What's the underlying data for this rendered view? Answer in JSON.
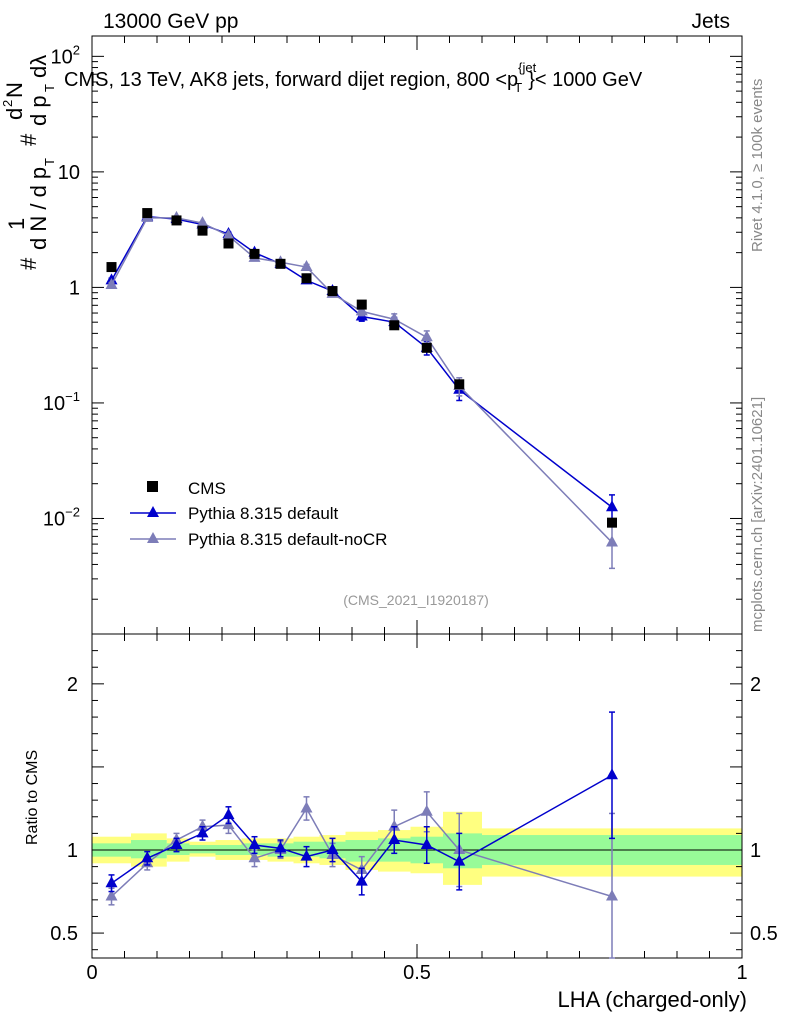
{
  "header": {
    "energy_label": "13000 GeV pp",
    "category_label": "Jets",
    "plot_title_main": "CMS, 13 TeV, AK8 jets, forward dijet region, 800 <p",
    "plot_title_sup": "{jet",
    "plot_title_sub": "T",
    "plot_title_end": "}< 1000 GeV",
    "rivet_label": "Rivet 4.1.0, ≥ 100k events",
    "mcplots_label": "mcplots.cern.ch [arXiv:2401.10621]",
    "analysis_id": "(CMS_2021_I1920187)"
  },
  "colors": {
    "data": "#000000",
    "default": "#0000cc",
    "noCR": "#7d7db8",
    "band_inner": "#98fb98",
    "band_outer": "#ffff80"
  },
  "chart_data": [
    {
      "type": "line",
      "id": "main",
      "yscale": "log",
      "xlim": [
        0,
        1
      ],
      "ylim": [
        0.001,
        150
      ],
      "ylabel": "# 1 / d N / d p_T # d^2N / d p_T dλ",
      "yticks": [
        {
          "value": 0.01,
          "base": "10",
          "exp": "−2"
        },
        {
          "value": 0.1,
          "base": "10",
          "exp": "−1"
        },
        {
          "value": 1,
          "base": "1",
          "exp": ""
        },
        {
          "value": 10,
          "base": "10",
          "exp": ""
        },
        {
          "value": 100,
          "base": "10",
          "exp": "2"
        }
      ],
      "legend": [
        {
          "label": "CMS",
          "series": "data"
        },
        {
          "label": "Pythia 8.315 default",
          "series": "default"
        },
        {
          "label": "Pythia 8.315 default-noCR",
          "series": "noCR"
        }
      ],
      "x": [
        0.03,
        0.085,
        0.13,
        0.17,
        0.21,
        0.25,
        0.29,
        0.33,
        0.37,
        0.415,
        0.465,
        0.515,
        0.565,
        0.8
      ],
      "series": [
        {
          "name": "CMS",
          "key": "data",
          "marker": "square",
          "values": [
            1.5,
            4.4,
            3.8,
            3.1,
            2.4,
            1.95,
            1.6,
            1.2,
            0.93,
            0.71,
            0.47,
            0.3,
            0.145,
            0.0092
          ]
        },
        {
          "name": "Pythia 8.315 default",
          "key": "default",
          "marker": "triangle",
          "values": [
            1.15,
            4.1,
            3.9,
            3.5,
            2.9,
            2.0,
            1.6,
            1.15,
            0.93,
            0.56,
            0.5,
            0.3,
            0.13,
            0.0125
          ],
          "errors": [
            0.05,
            0.12,
            0.12,
            0.1,
            0.1,
            0.07,
            0.06,
            0.06,
            0.05,
            0.05,
            0.05,
            0.04,
            0.025,
            0.0035
          ]
        },
        {
          "name": "Pythia 8.315 default-noCR",
          "key": "noCR",
          "marker": "triangle",
          "values": [
            1.05,
            4.0,
            4.0,
            3.6,
            2.8,
            1.8,
            1.65,
            1.5,
            0.88,
            0.62,
            0.53,
            0.37,
            0.14,
            0.0062
          ],
          "errors": [
            0.05,
            0.12,
            0.12,
            0.1,
            0.1,
            0.07,
            0.07,
            0.08,
            0.05,
            0.05,
            0.06,
            0.05,
            0.025,
            0.0025
          ]
        }
      ]
    },
    {
      "type": "line",
      "id": "ratio",
      "yscale": "linear",
      "xlim": [
        0,
        1
      ],
      "ylim": [
        0.35,
        2.3
      ],
      "xlabel": "LHA (charged-only)",
      "ylabel": "Ratio to CMS",
      "xticks": [
        {
          "value": 0,
          "label": "0"
        },
        {
          "value": 0.5,
          "label": "0.5"
        },
        {
          "value": 1,
          "label": "1"
        }
      ],
      "yticks": [
        {
          "value": 0.5,
          "label": "0.5"
        },
        {
          "value": 1,
          "label": "1"
        },
        {
          "value": 2,
          "label": "2"
        }
      ],
      "bands": [
        {
          "x0": 0.0,
          "x1": 0.06,
          "inner": [
            0.96,
            1.04
          ],
          "outer": [
            0.92,
            1.08
          ]
        },
        {
          "x0": 0.06,
          "x1": 0.115,
          "inner": [
            0.95,
            1.06
          ],
          "outer": [
            0.9,
            1.1
          ]
        },
        {
          "x0": 0.115,
          "x1": 0.15,
          "inner": [
            0.97,
            1.04
          ],
          "outer": [
            0.93,
            1.07
          ]
        },
        {
          "x0": 0.15,
          "x1": 0.19,
          "inner": [
            0.98,
            1.03
          ],
          "outer": [
            0.96,
            1.05
          ]
        },
        {
          "x0": 0.19,
          "x1": 0.23,
          "inner": [
            0.97,
            1.03
          ],
          "outer": [
            0.94,
            1.06
          ]
        },
        {
          "x0": 0.23,
          "x1": 0.27,
          "inner": [
            0.97,
            1.04
          ],
          "outer": [
            0.94,
            1.07
          ]
        },
        {
          "x0": 0.27,
          "x1": 0.31,
          "inner": [
            0.96,
            1.04
          ],
          "outer": [
            0.93,
            1.07
          ]
        },
        {
          "x0": 0.31,
          "x1": 0.35,
          "inner": [
            0.96,
            1.05
          ],
          "outer": [
            0.92,
            1.08
          ]
        },
        {
          "x0": 0.35,
          "x1": 0.39,
          "inner": [
            0.95,
            1.05
          ],
          "outer": [
            0.91,
            1.09
          ]
        },
        {
          "x0": 0.39,
          "x1": 0.44,
          "inner": [
            0.93,
            1.06
          ],
          "outer": [
            0.88,
            1.11
          ]
        },
        {
          "x0": 0.44,
          "x1": 0.49,
          "inner": [
            0.93,
            1.07
          ],
          "outer": [
            0.87,
            1.12
          ]
        },
        {
          "x0": 0.49,
          "x1": 0.54,
          "inner": [
            0.92,
            1.08
          ],
          "outer": [
            0.86,
            1.14
          ]
        },
        {
          "x0": 0.54,
          "x1": 0.6,
          "inner": [
            0.89,
            1.1
          ],
          "outer": [
            0.79,
            1.23
          ]
        },
        {
          "x0": 0.6,
          "x1": 1.0,
          "inner": [
            0.91,
            1.09
          ],
          "outer": [
            0.84,
            1.13
          ]
        }
      ],
      "series": [
        {
          "name": "Pythia 8.315 default",
          "key": "default",
          "values": [
            0.8,
            0.95,
            1.03,
            1.1,
            1.21,
            1.03,
            1.01,
            0.96,
            1.0,
            0.81,
            1.06,
            1.03,
            0.93,
            1.45
          ],
          "errors": [
            0.05,
            0.04,
            0.04,
            0.04,
            0.05,
            0.05,
            0.05,
            0.06,
            0.07,
            0.08,
            0.08,
            0.11,
            0.17,
            0.38
          ]
        },
        {
          "name": "Pythia 8.315 default-noCR",
          "key": "noCR",
          "values": [
            0.72,
            0.92,
            1.06,
            1.14,
            1.15,
            0.95,
            1.0,
            1.25,
            0.97,
            0.88,
            1.14,
            1.23,
            1.0,
            0.72
          ],
          "errors": [
            0.05,
            0.04,
            0.04,
            0.04,
            0.05,
            0.05,
            0.05,
            0.07,
            0.07,
            0.08,
            0.1,
            0.12,
            0.22,
            0.5
          ]
        }
      ]
    }
  ]
}
